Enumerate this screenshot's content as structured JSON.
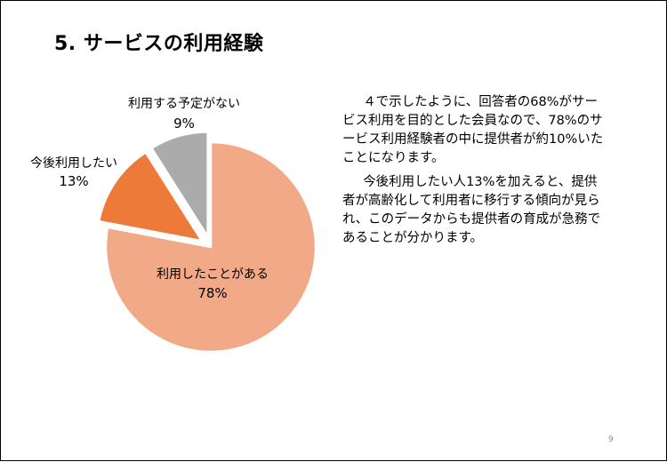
{
  "title": "5. サービスの利用経験",
  "chart_data": {
    "type": "pie",
    "title": "",
    "slices": [
      {
        "label": "利用したことがある",
        "value": 78,
        "value_label": "78%",
        "color": "#F2A987",
        "exploded": false
      },
      {
        "label": "今後利用したい",
        "value": 13,
        "value_label": "13%",
        "color": "#EE7A3A",
        "exploded": true
      },
      {
        "label": "利用する予定がない",
        "value": 9,
        "value_label": "9%",
        "color": "#ABABAB",
        "exploded": true
      }
    ]
  },
  "body": {
    "paragraph1": "４で示したように、回答者の68%がサービス利用を目的とした会員なので、78%のサービス利用経験者の中に提供者が約10%いたことになります。",
    "paragraph2": "今後利用したい人13%を加えると、提供者が高齢化して利用者に移行する傾向が見られ、このデータからも提供者の育成が急務であることが分かります。"
  },
  "page_number": "9"
}
